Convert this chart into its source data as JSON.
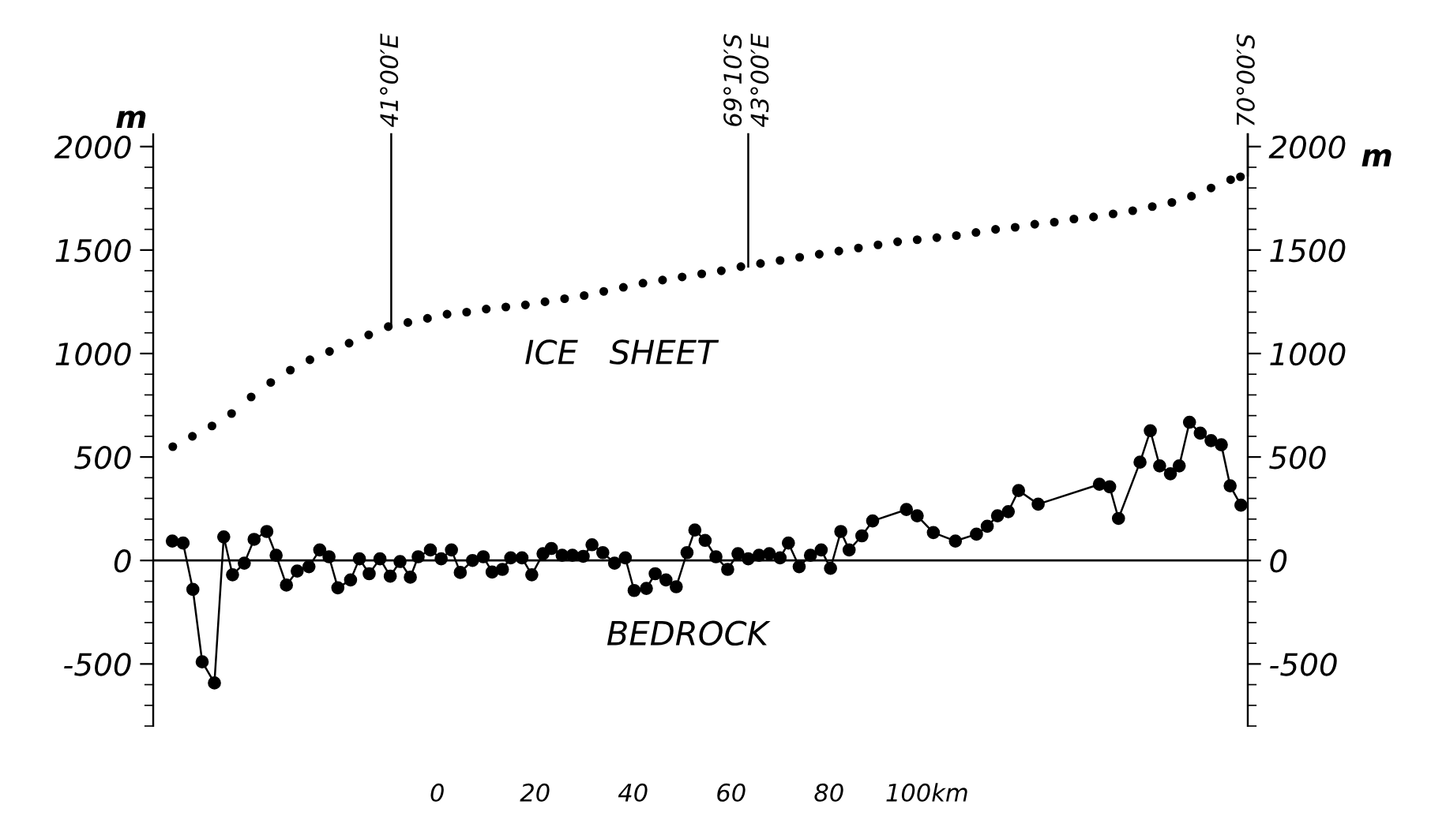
{
  "chart_data": {
    "type": "line",
    "ylabel": "m",
    "y2label": "m",
    "xlim": [
      -58,
      165.5
    ],
    "xticks": [
      0,
      20,
      40,
      60,
      80,
      {
        "value": 100,
        "label": "100km"
      }
    ],
    "ylim": [
      -800,
      2060
    ],
    "yticks": [
      -500,
      0,
      500,
      1000,
      1500,
      2000
    ],
    "y2lim": [
      -800,
      2060
    ],
    "y2ticks": [
      -500,
      0,
      500,
      1000,
      1500,
      2000
    ],
    "grid": false,
    "legend": false,
    "series": [
      {
        "type": "scatter",
        "color": "#000000",
        "marker": "circle",
        "x": [
          -54,
          -50,
          -46,
          -42,
          -38,
          -34,
          -30,
          -26,
          -22,
          -18,
          -14,
          -10,
          -6,
          -2,
          2,
          6,
          10,
          14,
          18,
          22,
          26,
          30,
          34,
          38,
          42,
          46,
          50,
          54,
          58,
          62,
          66,
          70,
          74,
          78,
          82,
          86,
          90,
          94,
          98,
          102,
          106,
          110,
          114,
          118,
          122,
          126,
          130,
          134,
          138,
          142,
          146,
          150,
          154,
          158,
          162,
          164
        ],
        "values": [
          550,
          600,
          650,
          710,
          790,
          860,
          920,
          970,
          1010,
          1050,
          1090,
          1130,
          1150,
          1170,
          1190,
          1200,
          1215,
          1225,
          1235,
          1250,
          1265,
          1280,
          1300,
          1320,
          1340,
          1355,
          1370,
          1385,
          1400,
          1420,
          1435,
          1450,
          1465,
          1480,
          1495,
          1510,
          1525,
          1540,
          1550,
          1560,
          1570,
          1585,
          1600,
          1610,
          1625,
          1635,
          1650,
          1660,
          1675,
          1690,
          1710,
          1730,
          1760,
          1800,
          1840,
          1854
        ]
      },
      {
        "color": "#000000",
        "marker": "circle",
        "line_style": "solid",
        "x": [
          -54.1,
          -51.9,
          -49.9,
          -48.0,
          -45.5,
          -43.6,
          -41.8,
          -39.4,
          -37.4,
          -34.8,
          -32.9,
          -30.8,
          -28.6,
          -26.2,
          -24.0,
          -22.1,
          -20.3,
          -17.7,
          -15.9,
          -13.9,
          -11.7,
          -9.6,
          -7.6,
          -5.5,
          -3.9,
          -1.4,
          0.8,
          2.9,
          4.7,
          7.2,
          9.4,
          11.2,
          13.3,
          15.0,
          17.3,
          19.3,
          21.6,
          23.3,
          25.5,
          27.6,
          29.8,
          31.6,
          33.8,
          36.2,
          38.4,
          40.2,
          42.7,
          44.5,
          46.7,
          48.8,
          51.0,
          52.6,
          54.7,
          56.9,
          59.3,
          61.4,
          63.5,
          65.7,
          67.8,
          70.0,
          71.7,
          73.9,
          76.2,
          78.4,
          80.3,
          82.4,
          84.1,
          86.7,
          88.9,
          95.8,
          98.0,
          101.3,
          105.8,
          110.1,
          112.3,
          114.4,
          116.6,
          118.7,
          122.7,
          135.2,
          137.3,
          139.1,
          143.5,
          145.6,
          147.5,
          149.7,
          151.5,
          153.6,
          155.8,
          158.0,
          160.1,
          161.9,
          164.1
        ],
        "values": [
          94,
          84,
          -140,
          -490,
          -592,
          114,
          -69,
          -13,
          102,
          140,
          25,
          -119,
          -51,
          -30,
          51,
          18,
          -132,
          -94,
          8,
          -64,
          8,
          -76,
          -5,
          -81,
          18,
          51,
          8,
          51,
          -58,
          0,
          18,
          -56,
          -43,
          13,
          13,
          -69,
          33,
          58,
          25,
          25,
          20,
          76,
          38,
          -13,
          13,
          -145,
          -135,
          -64,
          -94,
          -127,
          38,
          147,
          97,
          18,
          -43,
          33,
          8,
          25,
          33,
          13,
          84,
          -30,
          25,
          51,
          -38,
          140,
          51,
          119,
          191,
          246,
          216,
          135,
          94,
          127,
          165,
          216,
          236,
          338,
          272,
          368,
          356,
          203,
          475,
          627,
          457,
          419,
          457,
          668,
          615,
          579,
          559,
          361,
          267
        ]
      }
    ],
    "ref_lines": [
      {
        "axis": "y",
        "value": 0,
        "color": "#000000",
        "line_style": "solid"
      }
    ],
    "annotations": [
      "ICE   SHEET",
      "BEDROCK",
      {
        "text": "41°00′E",
        "x": -9.4,
        "y": 1140
      },
      {
        "text": "69°10′S\n43°00′E",
        "x": 63.5,
        "y": 1420
      },
      {
        "text": "70°00′S",
        "x": 165.5,
        "y": 1860
      }
    ]
  }
}
